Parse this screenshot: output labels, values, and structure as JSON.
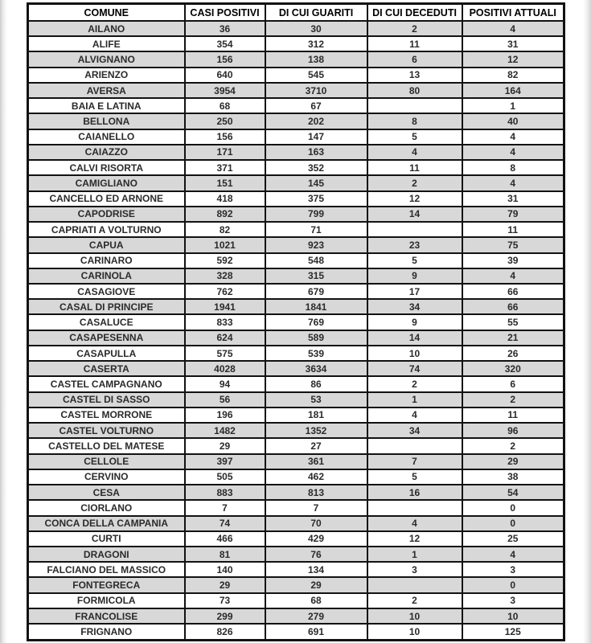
{
  "page": {
    "background_color": "#ffffff",
    "row_alt_color": "#d8d8d8",
    "border_color": "#121212"
  },
  "table": {
    "columns": [
      "COMUNE",
      "CASI POSITIVI",
      "DI CUI GUARITI",
      "DI CUI DECEDUTI",
      "POSITIVI ATTUALI"
    ],
    "rows": [
      [
        "AILANO",
        "36",
        "30",
        "2",
        "4"
      ],
      [
        "ALIFE",
        "354",
        "312",
        "11",
        "31"
      ],
      [
        "ALVIGNANO",
        "156",
        "138",
        "6",
        "12"
      ],
      [
        "ARIENZO",
        "640",
        "545",
        "13",
        "82"
      ],
      [
        "AVERSA",
        "3954",
        "3710",
        "80",
        "164"
      ],
      [
        "BAIA E LATINA",
        "68",
        "67",
        "",
        "1"
      ],
      [
        "BELLONA",
        "250",
        "202",
        "8",
        "40"
      ],
      [
        "CAIANELLO",
        "156",
        "147",
        "5",
        "4"
      ],
      [
        "CAIAZZO",
        "171",
        "163",
        "4",
        "4"
      ],
      [
        "CALVI RISORTA",
        "371",
        "352",
        "11",
        "8"
      ],
      [
        "CAMIGLIANO",
        "151",
        "145",
        "2",
        "4"
      ],
      [
        "CANCELLO ED ARNONE",
        "418",
        "375",
        "12",
        "31"
      ],
      [
        "CAPODRISE",
        "892",
        "799",
        "14",
        "79"
      ],
      [
        "CAPRIATI A VOLTURNO",
        "82",
        "71",
        "",
        "11"
      ],
      [
        "CAPUA",
        "1021",
        "923",
        "23",
        "75"
      ],
      [
        "CARINARO",
        "592",
        "548",
        "5",
        "39"
      ],
      [
        "CARINOLA",
        "328",
        "315",
        "9",
        "4"
      ],
      [
        "CASAGIOVE",
        "762",
        "679",
        "17",
        "66"
      ],
      [
        "CASAL DI PRINCIPE",
        "1941",
        "1841",
        "34",
        "66"
      ],
      [
        "CASALUCE",
        "833",
        "769",
        "9",
        "55"
      ],
      [
        "CASAPESENNA",
        "624",
        "589",
        "14",
        "21"
      ],
      [
        "CASAPULLA",
        "575",
        "539",
        "10",
        "26"
      ],
      [
        "CASERTA",
        "4028",
        "3634",
        "74",
        "320"
      ],
      [
        "CASTEL CAMPAGNANO",
        "94",
        "86",
        "2",
        "6"
      ],
      [
        "CASTEL DI SASSO",
        "56",
        "53",
        "1",
        "2"
      ],
      [
        "CASTEL MORRONE",
        "196",
        "181",
        "4",
        "11"
      ],
      [
        "CASTEL VOLTURNO",
        "1482",
        "1352",
        "34",
        "96"
      ],
      [
        "CASTELLO DEL MATESE",
        "29",
        "27",
        "",
        "2"
      ],
      [
        "CELLOLE",
        "397",
        "361",
        "7",
        "29"
      ],
      [
        "CERVINO",
        "505",
        "462",
        "5",
        "38"
      ],
      [
        "CESA",
        "883",
        "813",
        "16",
        "54"
      ],
      [
        "CIORLANO",
        "7",
        "7",
        "",
        "0"
      ],
      [
        "CONCA DELLA CAMPANIA",
        "74",
        "70",
        "4",
        "0"
      ],
      [
        "CURTI",
        "466",
        "429",
        "12",
        "25"
      ],
      [
        "DRAGONI",
        "81",
        "76",
        "1",
        "4"
      ],
      [
        "FALCIANO DEL MASSICO",
        "140",
        "134",
        "3",
        "3"
      ],
      [
        "FONTEGRECA",
        "29",
        "29",
        "",
        "0"
      ],
      [
        "FORMICOLA",
        "73",
        "68",
        "2",
        "3"
      ],
      [
        "FRANCOLISE",
        "299",
        "279",
        "10",
        "10"
      ],
      [
        "FRIGNANO",
        "826",
        "691",
        "10",
        "125"
      ]
    ]
  }
}
